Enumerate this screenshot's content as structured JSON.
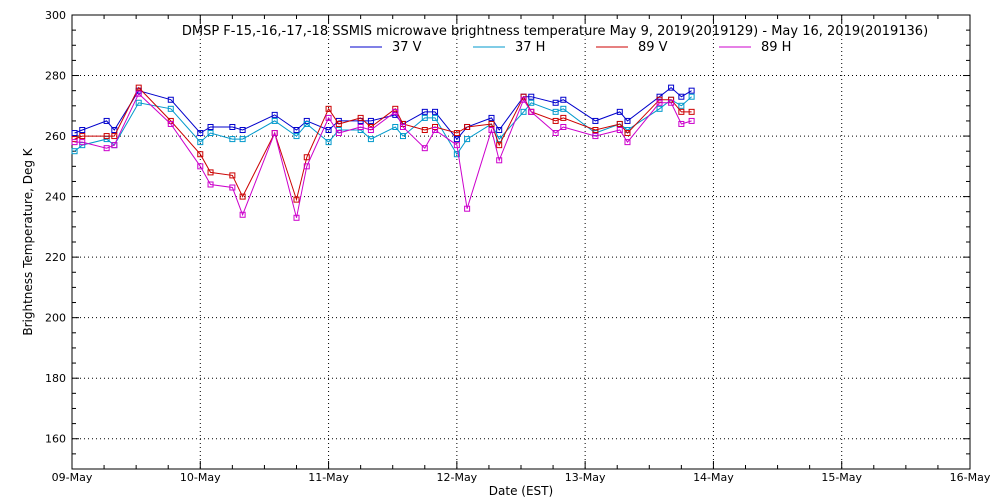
{
  "chart_data": {
    "type": "line",
    "title": "DMSP F-15,-16,-17,-18 SSMIS microwave brightness temperature May  9, 2019(2019129) - May 16, 2019(2019136)",
    "xlabel": "Date (EST)",
    "ylabel": "Brightness Temperature, Deg K",
    "xlim": [
      0,
      7
    ],
    "ylim": [
      150,
      300
    ],
    "yticks": [
      160,
      180,
      200,
      220,
      240,
      260,
      280,
      300
    ],
    "xticks": [
      0,
      1,
      2,
      3,
      4,
      5,
      6,
      7
    ],
    "xtick_labels": [
      "09-May",
      "10-May",
      "11-May",
      "12-May",
      "13-May",
      "14-May",
      "15-May",
      "16-May"
    ],
    "grid": true,
    "legend_placement": "top-center",
    "x": [
      0.02,
      0.08,
      0.27,
      0.33,
      0.52,
      0.77,
      1.0,
      1.08,
      1.25,
      1.33,
      1.58,
      1.75,
      1.83,
      2.0,
      2.08,
      2.25,
      2.33,
      2.52,
      2.58,
      2.75,
      2.83,
      3.0,
      3.08,
      3.27,
      3.33,
      3.52,
      3.58,
      3.77,
      3.83,
      4.08,
      4.27,
      4.33,
      4.58,
      4.67,
      4.75,
      4.83
    ],
    "series": [
      {
        "name": "37 V",
        "color": "#0000cc",
        "values": [
          261,
          262,
          265,
          262,
          275,
          272,
          261,
          263,
          263,
          262,
          267,
          262,
          265,
          262,
          265,
          265,
          265,
          267,
          264,
          268,
          268,
          259,
          263,
          266,
          262,
          273,
          273,
          271,
          272,
          265,
          268,
          265,
          273,
          276,
          273,
          275
        ]
      },
      {
        "name": "37 H",
        "color": "#0099cc",
        "values": [
          255,
          257,
          259,
          257,
          271,
          269,
          258,
          261,
          259,
          259,
          265,
          260,
          264,
          258,
          262,
          262,
          259,
          263,
          260,
          266,
          266,
          254,
          259,
          264,
          259,
          268,
          271,
          268,
          269,
          261,
          264,
          262,
          269,
          272,
          270,
          273
        ]
      },
      {
        "name": "89 V",
        "color": "#cc0000",
        "values": [
          259,
          260,
          260,
          260,
          276,
          265,
          254,
          248,
          247,
          240,
          261,
          239,
          253,
          269,
          264,
          266,
          263,
          269,
          264,
          262,
          263,
          261,
          263,
          264,
          257,
          273,
          268,
          265,
          266,
          262,
          264,
          261,
          272,
          272,
          268,
          268
        ]
      },
      {
        "name": "89 H",
        "color": "#cc00cc",
        "values": [
          258,
          258,
          256,
          257,
          274,
          264,
          250,
          244,
          243,
          234,
          261,
          233,
          250,
          266,
          261,
          263,
          262,
          268,
          263,
          256,
          262,
          257,
          236,
          262,
          252,
          272,
          268,
          261,
          263,
          260,
          262,
          258,
          271,
          271,
          264,
          265
        ]
      }
    ]
  }
}
